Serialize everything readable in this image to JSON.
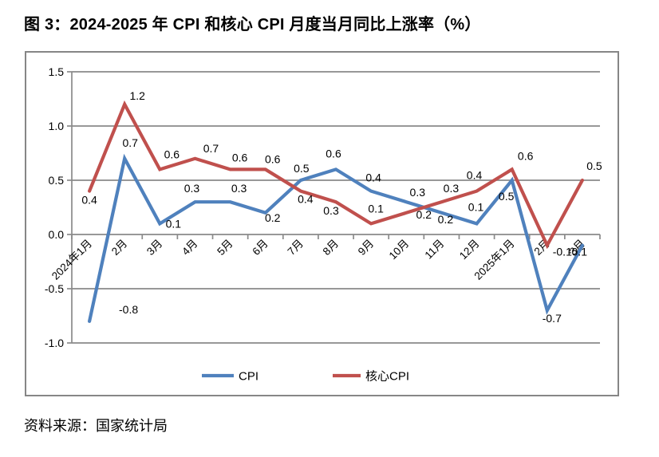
{
  "figure": {
    "title": "图 3：2024-2025 年 CPI 和核心 CPI 月度当月同比上涨率（%）",
    "source": "资料来源：国家统计局"
  },
  "chart_data": {
    "type": "line",
    "title": "图 3：2024-2025 年 CPI 和核心 CPI 月度当月同比上涨率（%）",
    "xlabel": "",
    "ylabel": "",
    "categories": [
      "2024年1月",
      "2月",
      "3月",
      "4月",
      "5月",
      "6月",
      "7月",
      "8月",
      "9月",
      "10月",
      "11月",
      "12月",
      "2025年1月",
      "2月",
      "3月"
    ],
    "series": [
      {
        "name": "CPI",
        "color": "#4F81BD",
        "values": [
          -0.8,
          0.7,
          0.1,
          0.3,
          0.3,
          0.2,
          0.5,
          0.6,
          0.4,
          0.3,
          0.2,
          0.1,
          0.5,
          -0.7,
          -0.1
        ],
        "label_offsets": [
          [
            49,
            -15
          ],
          [
            7,
            -20
          ],
          [
            17,
            0
          ],
          [
            -4,
            -17
          ],
          [
            11,
            -17
          ],
          [
            9,
            6
          ],
          [
            1,
            -15
          ],
          [
            -3,
            -20
          ],
          [
            3,
            -17
          ],
          [
            14,
            -12
          ],
          [
            5,
            8
          ],
          [
            -1,
            -21
          ],
          [
            -7,
            20
          ],
          [
            6,
            10
          ],
          [
            -6,
            8
          ]
        ]
      },
      {
        "name": "核心CPI",
        "color": "#C0504D",
        "values": [
          0.4,
          1.2,
          0.6,
          0.7,
          0.6,
          0.6,
          0.4,
          0.3,
          0.1,
          0.2,
          0.3,
          0.4,
          0.6,
          -0.1,
          0.5
        ],
        "label_offsets": [
          [
            0,
            11
          ],
          [
            16,
            -11
          ],
          [
            15,
            -19
          ],
          [
            20,
            -13
          ],
          [
            12,
            -15
          ],
          [
            9,
            -13
          ],
          [
            6,
            10
          ],
          [
            -6,
            11
          ],
          [
            6,
            -19
          ],
          [
            22,
            2
          ],
          [
            12,
            -17
          ],
          [
            -3,
            -20
          ],
          [
            17,
            -17
          ],
          [
            19,
            8
          ],
          [
            15,
            -18
          ]
        ]
      }
    ],
    "ylim": [
      -1.0,
      1.5
    ],
    "yticks": [
      1.5,
      1.0,
      0.5,
      0.0,
      -0.5,
      -1.0
    ],
    "grid": true,
    "legend_position": "bottom",
    "axis_color": "#8a8a8a",
    "label_color": "#000000"
  }
}
